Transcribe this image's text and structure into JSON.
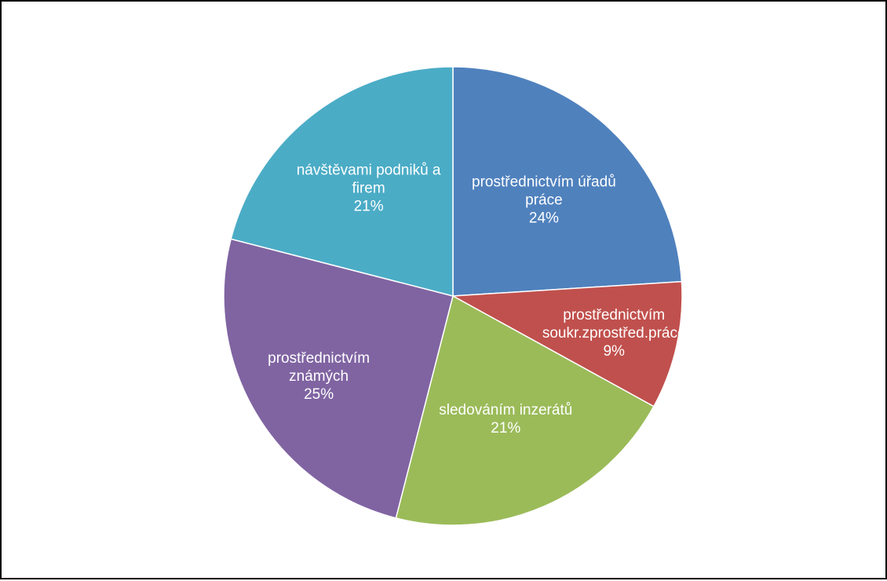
{
  "chart_data": {
    "type": "pie",
    "title": "",
    "legend": "none",
    "slices": [
      {
        "name": "prostřednictvím úřadů práce",
        "label_lines": [
          "prostřednictvím úřadů",
          "práce"
        ],
        "value": 24,
        "value_label": "24%",
        "color": "#4F81BD"
      },
      {
        "name": "prostřednictvím soukr.zprostřed.práce",
        "label_lines": [
          "prostřednictvím",
          "soukr.zprostřed.práce"
        ],
        "value": 9,
        "value_label": "9%",
        "color": "#C0504D"
      },
      {
        "name": "sledováním inzerátů",
        "label_lines": [
          "sledováním inzerátů"
        ],
        "value": 21,
        "value_label": "21%",
        "color": "#9BBB59"
      },
      {
        "name": "prostřednictvím známých",
        "label_lines": [
          "prostřednictvím",
          "známých"
        ],
        "value": 25,
        "value_label": "25%",
        "color": "#8064A2"
      },
      {
        "name": "návštěvami podniků a firem",
        "label_lines": [
          "návštěvami podniků a",
          "firem"
        ],
        "value": 21,
        "value_label": "21%",
        "color": "#4BACC6"
      }
    ]
  }
}
